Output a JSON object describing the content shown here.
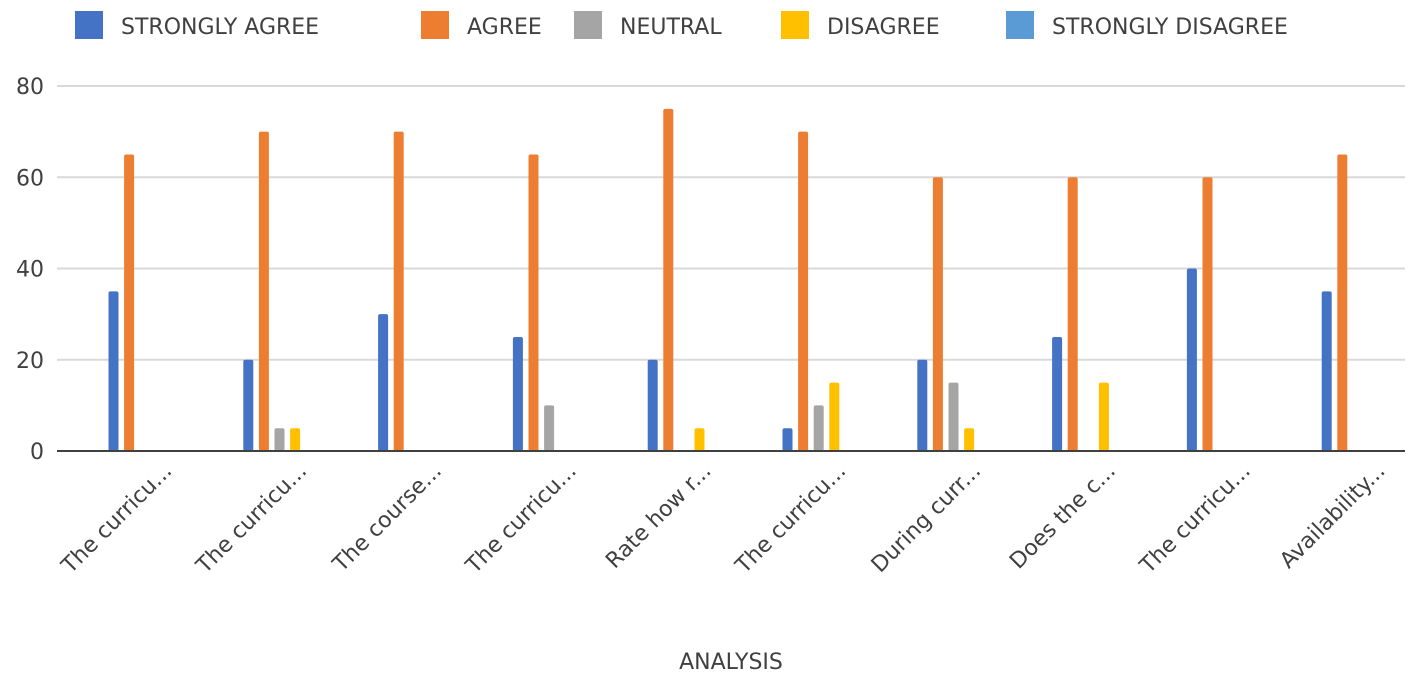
{
  "chart_data": {
    "type": "bar",
    "title": "",
    "xlabel": "ANALYSIS",
    "ylabel": "",
    "ylim": [
      0,
      80
    ],
    "yticks": [
      0,
      20,
      40,
      60,
      80
    ],
    "grid": true,
    "legend_position": "top",
    "categories": [
      "The curricu...",
      "The curricu...",
      "The course...",
      "The curricu...",
      "Rate how r...",
      "The curricu...",
      "During curr...",
      "Does the c...",
      "The curricu...",
      "Availability..."
    ],
    "series": [
      {
        "name": "STRONGLY AGREE",
        "color": "#4472C4",
        "values": [
          35,
          20,
          30,
          25,
          20,
          5,
          20,
          25,
          40,
          35
        ]
      },
      {
        "name": "AGREE",
        "color": "#ED7D31",
        "values": [
          65,
          70,
          70,
          65,
          75,
          70,
          60,
          60,
          60,
          65
        ]
      },
      {
        "name": "NEUTRAL",
        "color": "#A5A5A5",
        "values": [
          0,
          5,
          0,
          10,
          0,
          10,
          15,
          0,
          0,
          0
        ]
      },
      {
        "name": "DISAGREE",
        "color": "#FFC000",
        "values": [
          0,
          5,
          0,
          0,
          5,
          15,
          5,
          15,
          0,
          0
        ]
      },
      {
        "name": "STRONGLY DISAGREE",
        "color": "#5B9BD5",
        "values": [
          0,
          0,
          0,
          0,
          0,
          0,
          0,
          0,
          0,
          0
        ]
      }
    ]
  }
}
